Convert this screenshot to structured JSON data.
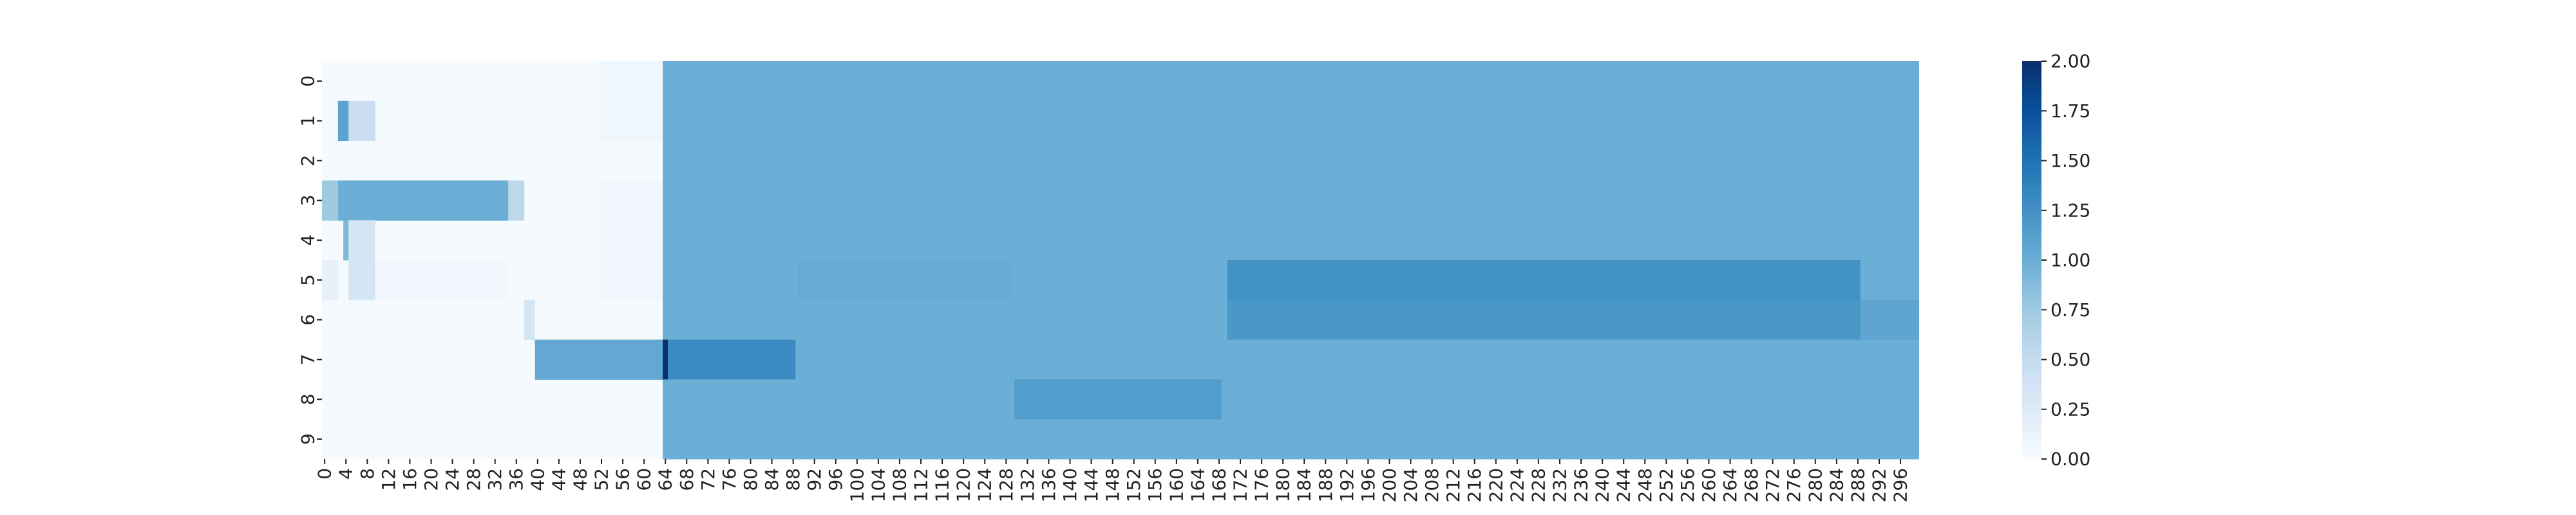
{
  "chart_data": {
    "type": "heatmap",
    "title": "",
    "xlabel": "",
    "ylabel": "",
    "x_range": [
      0,
      300
    ],
    "x_ticks": [
      0,
      4,
      8,
      12,
      16,
      20,
      24,
      28,
      32,
      36,
      40,
      44,
      48,
      52,
      56,
      60,
      64,
      68,
      72,
      76,
      80,
      84,
      88,
      92,
      96,
      100,
      104,
      108,
      112,
      116,
      120,
      124,
      128,
      132,
      136,
      140,
      144,
      148,
      152,
      156,
      160,
      164,
      168,
      172,
      176,
      180,
      184,
      188,
      192,
      196,
      200,
      204,
      208,
      212,
      216,
      220,
      224,
      228,
      232,
      236,
      240,
      244,
      248,
      252,
      256,
      260,
      264,
      268,
      272,
      276,
      280,
      284,
      288,
      292,
      296
    ],
    "y_ticks": [
      0,
      1,
      2,
      3,
      4,
      5,
      6,
      7,
      8,
      9
    ],
    "background_value": 0.02,
    "colormap": [
      "#f7fbff",
      "#deebf7",
      "#c6dbef",
      "#9ecae1",
      "#6baed6",
      "#4292c6",
      "#2171b5",
      "#08519c",
      "#08306b"
    ],
    "color_range": [
      0,
      2.0
    ],
    "colorbar_ticks": [
      "0.00",
      "0.25",
      "0.50",
      "0.75",
      "1.00",
      "1.25",
      "1.50",
      "1.75",
      "2.00"
    ],
    "segments": [
      {
        "row": 0,
        "x0": 52,
        "x1": 64,
        "value": 0.08
      },
      {
        "row": 0,
        "x0": 64,
        "x1": 300,
        "value": 1.0
      },
      {
        "row": 1,
        "x0": 3,
        "x1": 5,
        "value": 1.1
      },
      {
        "row": 1,
        "x0": 5,
        "x1": 10,
        "value": 0.45
      },
      {
        "row": 1,
        "x0": 52,
        "x1": 64,
        "value": 0.08
      },
      {
        "row": 1,
        "x0": 64,
        "x1": 300,
        "value": 1.0
      },
      {
        "row": 2,
        "x0": 64,
        "x1": 300,
        "value": 1.0
      },
      {
        "row": 3,
        "x0": 0,
        "x1": 3,
        "value": 0.75
      },
      {
        "row": 3,
        "x0": 3,
        "x1": 35,
        "value": 1.0
      },
      {
        "row": 3,
        "x0": 35,
        "x1": 38,
        "value": 0.55
      },
      {
        "row": 3,
        "x0": 52,
        "x1": 64,
        "value": 0.06
      },
      {
        "row": 3,
        "x0": 64,
        "x1": 300,
        "value": 1.0
      },
      {
        "row": 4,
        "x0": 4,
        "x1": 5,
        "value": 0.9
      },
      {
        "row": 4,
        "x0": 5,
        "x1": 10,
        "value": 0.35
      },
      {
        "row": 4,
        "x0": 52,
        "x1": 64,
        "value": 0.06
      },
      {
        "row": 4,
        "x0": 64,
        "x1": 300,
        "value": 1.0
      },
      {
        "row": 5,
        "x0": 0,
        "x1": 3,
        "value": 0.15
      },
      {
        "row": 5,
        "x0": 5,
        "x1": 10,
        "value": 0.35
      },
      {
        "row": 5,
        "x0": 10,
        "x1": 35,
        "value": 0.06
      },
      {
        "row": 5,
        "x0": 52,
        "x1": 64,
        "value": 0.06
      },
      {
        "row": 5,
        "x0": 64,
        "x1": 89,
        "value": 1.0
      },
      {
        "row": 5,
        "x0": 89,
        "x1": 130,
        "value": 1.02
      },
      {
        "row": 5,
        "x0": 130,
        "x1": 170,
        "value": 1.0
      },
      {
        "row": 5,
        "x0": 170,
        "x1": 289,
        "value": 1.25
      },
      {
        "row": 5,
        "x0": 289,
        "x1": 300,
        "value": 1.0
      },
      {
        "row": 6,
        "x0": 38,
        "x1": 40,
        "value": 0.35
      },
      {
        "row": 6,
        "x0": 64,
        "x1": 170,
        "value": 1.0
      },
      {
        "row": 6,
        "x0": 170,
        "x1": 289,
        "value": 1.2
      },
      {
        "row": 6,
        "x0": 289,
        "x1": 300,
        "value": 1.08
      },
      {
        "row": 7,
        "x0": 40,
        "x1": 64,
        "value": 1.05
      },
      {
        "row": 7,
        "x0": 64,
        "x1": 65,
        "value": 2.0
      },
      {
        "row": 7,
        "x0": 65,
        "x1": 89,
        "value": 1.3
      },
      {
        "row": 7,
        "x0": 89,
        "x1": 300,
        "value": 1.0
      },
      {
        "row": 8,
        "x0": 64,
        "x1": 130,
        "value": 1.0
      },
      {
        "row": 8,
        "x0": 130,
        "x1": 169,
        "value": 1.15
      },
      {
        "row": 8,
        "x0": 169,
        "x1": 300,
        "value": 1.0
      },
      {
        "row": 9,
        "x0": 64,
        "x1": 300,
        "value": 1.0
      }
    ]
  }
}
